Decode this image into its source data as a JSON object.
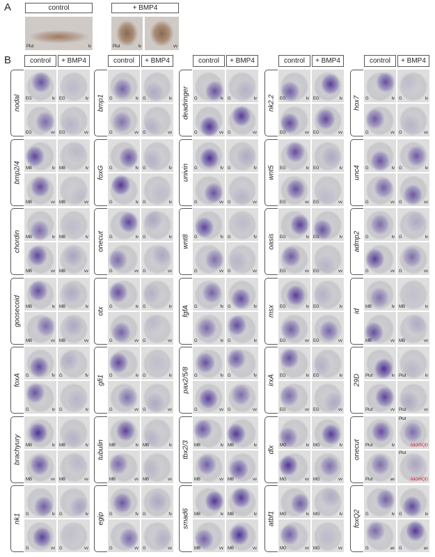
{
  "panel_a": {
    "label": "A",
    "headers": [
      "control",
      "+ BMP4"
    ],
    "images": [
      {
        "s": "Plut",
        "v": "lv"
      },
      {
        "s": "Plut",
        "v": "lv"
      },
      {
        "v": "vv"
      }
    ]
  },
  "panel_b": {
    "label": "B",
    "columns": [
      {
        "headers": [
          "control",
          "+ BMP4"
        ],
        "genes": [
          {
            "name": "nodal",
            "images": [
              [
                {
                  "s": "EG",
                  "v": "lv"
                },
                {
                  "s": "EG",
                  "v": "lv"
                }
              ],
              [
                {
                  "s": "EG",
                  "v": "vv"
                },
                {
                  "s": "EG",
                  "v": "vv"
                }
              ]
            ]
          },
          {
            "name": "bmp2/4",
            "images": [
              [
                {
                  "s": "MB",
                  "v": "lv"
                },
                {
                  "s": "MB",
                  "v": "lv"
                }
              ],
              [
                {
                  "s": "MB",
                  "v": "vv"
                },
                {
                  "s": "MB",
                  "v": "vv"
                }
              ]
            ]
          },
          {
            "name": "chordin",
            "images": [
              [
                {
                  "s": "MB",
                  "v": "lv"
                },
                {
                  "s": "MB",
                  "v": "lv"
                }
              ],
              [
                {
                  "s": "MB",
                  "v": "vv"
                },
                {
                  "s": "MB",
                  "v": "vv"
                }
              ]
            ]
          },
          {
            "name": "goosecoid",
            "images": [
              [
                {
                  "s": "MB",
                  "v": "lv"
                },
                {
                  "s": "MB",
                  "v": "lv"
                }
              ],
              [
                {
                  "s": "MB",
                  "v": "vv"
                },
                {
                  "s": "MB",
                  "v": "vv"
                }
              ]
            ]
          },
          {
            "name": "foxA",
            "images": [
              [
                {
                  "s": "G",
                  "v": "fv"
                },
                {
                  "s": "G",
                  "v": "fv"
                }
              ],
              [
                {
                  "s": "G",
                  "v": "lv"
                },
                {
                  "s": "G",
                  "v": "lv"
                }
              ]
            ]
          },
          {
            "name": "brachyury",
            "images": [
              [
                {
                  "s": "MB",
                  "v": "lv"
                },
                {
                  "s": "MB",
                  "v": "lv"
                }
              ],
              [
                {
                  "s": "MB",
                  "v": "vv"
                },
                {
                  "s": "MB",
                  "v": "vv"
                }
              ]
            ]
          },
          {
            "name": "nk1",
            "images": [
              [
                {
                  "s": "G",
                  "v": "lv"
                },
                {
                  "s": "G",
                  "v": "lv"
                }
              ],
              [
                {
                  "s": "G",
                  "v": "vv"
                },
                {
                  "s": "G",
                  "v": "vv"
                }
              ]
            ]
          }
        ]
      },
      {
        "headers": [
          "control",
          "+ BMP4"
        ],
        "genes": [
          {
            "name": "bmp1",
            "images": [
              [
                {
                  "s": "G",
                  "v": "lv"
                },
                {
                  "s": "G",
                  "v": "lv"
                }
              ],
              [
                {
                  "s": "G",
                  "v": "vv"
                },
                {
                  "s": "G",
                  "v": "vv"
                }
              ]
            ]
          },
          {
            "name": "foxG",
            "images": [
              [
                {
                  "s": "G",
                  "v": "fv"
                },
                {
                  "s": "G",
                  "v": "fv"
                }
              ],
              [
                {
                  "s": "G",
                  "v": "lv"
                },
                {
                  "s": "G",
                  "v": "lv"
                }
              ]
            ]
          },
          {
            "name": "onecut",
            "images": [
              [
                {
                  "s": "G",
                  "v": "lv"
                },
                {
                  "s": "G",
                  "v": "lv"
                }
              ],
              [
                {
                  "s": "G",
                  "v": "vv"
                },
                {
                  "s": "G",
                  "v": "vv"
                }
              ]
            ]
          },
          {
            "name": "otx",
            "images": [
              [
                {
                  "s": "G",
                  "v": "lv"
                },
                {
                  "s": "G",
                  "v": "lv"
                }
              ],
              [
                {
                  "s": "G",
                  "v": "vv"
                },
                {
                  "s": "G",
                  "v": "vv"
                }
              ]
            ]
          },
          {
            "name": "gfi1",
            "images": [
              [
                {
                  "s": "G",
                  "v": "lv"
                },
                {
                  "s": "G",
                  "v": "lv"
                }
              ],
              [
                {
                  "s": "G",
                  "v": "vv"
                },
                {
                  "s": "G",
                  "v": "vv"
                }
              ]
            ]
          },
          {
            "name": "tubulin",
            "images": [
              [
                {
                  "s": "MB",
                  "v": "lv"
                },
                {
                  "s": "MB",
                  "v": "lv"
                }
              ],
              [
                {
                  "s": "MB",
                  "v": "vv"
                },
                {
                  "s": "MB",
                  "v": "vv"
                }
              ]
            ]
          },
          {
            "name": "egip",
            "images": [
              [
                {
                  "s": "G",
                  "v": "fv"
                },
                {
                  "s": "G",
                  "v": "fv"
                }
              ],
              [
                {
                  "s": "G",
                  "v": "vv"
                },
                {
                  "s": "G",
                  "v": "vv"
                }
              ]
            ]
          }
        ]
      },
      {
        "headers": [
          "control",
          "+ BMP4"
        ],
        "genes": [
          {
            "name": "deadringer",
            "images": [
              [
                {
                  "s": "G",
                  "v": "lv"
                },
                {
                  "s": "G",
                  "v": "lv"
                }
              ],
              [
                {
                  "s": "G",
                  "v": "vv"
                },
                {
                  "s": "G",
                  "v": "vv"
                }
              ]
            ]
          },
          {
            "name": "univin",
            "images": [
              [
                {
                  "s": "G",
                  "v": "fv"
                },
                {
                  "s": "G",
                  "v": "fv"
                }
              ],
              [
                {
                  "s": "G",
                  "v": "vv"
                },
                {
                  "s": "G",
                  "v": "vv"
                }
              ]
            ]
          },
          {
            "name": "wnt8",
            "images": [
              [
                {
                  "s": "G",
                  "v": "fv"
                },
                {
                  "s": "G",
                  "v": "fv"
                }
              ],
              [
                {
                  "s": "G",
                  "v": "vv"
                },
                {
                  "s": "G",
                  "v": "vv"
                }
              ]
            ]
          },
          {
            "name": "fgfA",
            "images": [
              [
                {
                  "s": "G",
                  "v": "fv"
                },
                {
                  "s": "G",
                  "v": "fv"
                }
              ],
              [
                {
                  "s": "G",
                  "v": "lv"
                },
                {
                  "s": "G",
                  "v": "lv"
                }
              ]
            ]
          },
          {
            "name": "pax2/5/8",
            "images": [
              [
                {
                  "s": "G",
                  "v": "fv"
                },
                {
                  "s": "G",
                  "v": "fv"
                }
              ],
              [
                {
                  "s": "G",
                  "v": "vv"
                },
                {
                  "s": "G",
                  "v": "vv"
                }
              ]
            ]
          },
          {
            "name": "tbx2/3",
            "images": [
              [
                {
                  "s": "MB",
                  "v": "lv"
                },
                {
                  "s": "MB",
                  "v": "lv"
                }
              ],
              [
                {
                  "s": "MB",
                  "v": "vv"
                },
                {
                  "s": "MB",
                  "v": "vv"
                }
              ]
            ]
          },
          {
            "name": "smad6",
            "images": [
              [
                {
                  "s": "MB",
                  "v": "lv"
                },
                {
                  "s": "MB",
                  "v": "lv"
                }
              ],
              [
                {
                  "s": "MB",
                  "v": "vv"
                },
                {
                  "s": "MB",
                  "v": "vv"
                }
              ]
            ]
          }
        ]
      },
      {
        "headers": [
          "control",
          "+ BMP4"
        ],
        "genes": [
          {
            "name": "nk2.2",
            "images": [
              [
                {
                  "s": "EG",
                  "v": "lv"
                },
                {
                  "s": "EG",
                  "v": "lv"
                }
              ],
              [
                {
                  "s": "EG",
                  "v": "vv"
                },
                {
                  "s": "EG",
                  "v": "vv"
                }
              ]
            ]
          },
          {
            "name": "wnt5",
            "images": [
              [
                {
                  "s": "EG",
                  "v": "lv"
                },
                {
                  "s": "EG",
                  "v": "lv"
                }
              ],
              [
                {
                  "s": "EG",
                  "v": "vv"
                },
                {
                  "s": "EG",
                  "v": "vv"
                }
              ]
            ]
          },
          {
            "name": "oasis",
            "images": [
              [
                {
                  "s": "EG",
                  "v": "lv"
                },
                {
                  "s": "EG",
                  "v": "lv"
                }
              ],
              [
                {
                  "s": "EG",
                  "v": "vv"
                },
                {
                  "s": "EG",
                  "v": "vv"
                }
              ]
            ]
          },
          {
            "name": "msx",
            "images": [
              [
                {
                  "s": "EG",
                  "v": "lv"
                },
                {
                  "s": "EG",
                  "v": "lv"
                }
              ],
              [
                {
                  "s": "EG",
                  "v": "vv"
                },
                {
                  "s": "EG",
                  "v": "vv"
                }
              ]
            ]
          },
          {
            "name": "irxA",
            "images": [
              [
                {
                  "s": "EG",
                  "v": "lv"
                },
                {
                  "s": "EG",
                  "v": "lv"
                }
              ],
              [
                {
                  "s": "EG",
                  "v": "vv"
                },
                {
                  "s": "EG",
                  "v": "vv"
                }
              ]
            ]
          },
          {
            "name": "dlx",
            "images": [
              [
                {
                  "s": "MG",
                  "v": "lv"
                },
                {
                  "s": "MG",
                  "v": "lv"
                }
              ],
              [
                {
                  "s": "MG",
                  "v": "vv"
                },
                {
                  "s": "MG",
                  "v": "vv"
                }
              ]
            ]
          },
          {
            "name": "atbf1",
            "images": [
              [
                {
                  "s": "MG",
                  "v": "lv"
                },
                {
                  "s": "MG",
                  "v": "lv"
                }
              ],
              [
                {
                  "s": "MG",
                  "v": "vv"
                },
                {
                  "s": "MG",
                  "v": "vv"
                }
              ]
            ]
          }
        ]
      },
      {
        "headers": [
          "control",
          "+ BMP4"
        ],
        "genes": [
          {
            "name": "hox7",
            "images": [
              [
                {
                  "s": "G",
                  "v": "lv"
                },
                {
                  "s": "G",
                  "v": "lv"
                }
              ],
              [
                {
                  "s": "G",
                  "v": "vv"
                },
                {
                  "s": "G",
                  "v": "vv"
                }
              ]
            ]
          },
          {
            "name": "unc4",
            "images": [
              [
                {
                  "s": "G",
                  "v": "lv"
                },
                {
                  "s": "G",
                  "v": "lv"
                }
              ],
              [
                {
                  "s": "G",
                  "v": "vv"
                },
                {
                  "s": "G",
                  "v": "vv"
                }
              ]
            ]
          },
          {
            "name": "admp2",
            "images": [
              [
                {
                  "s": "G",
                  "v": "lv"
                },
                {
                  "s": "G",
                  "v": "lv"
                }
              ],
              [
                {
                  "s": "G",
                  "v": "vv"
                },
                {
                  "s": "G",
                  "v": "vv"
                }
              ]
            ]
          },
          {
            "name": "id",
            "images": [
              [
                {
                  "s": "MB",
                  "v": "lv"
                },
                {
                  "s": "MB",
                  "v": "lv"
                }
              ],
              [
                {
                  "s": "MB",
                  "v": "vv"
                },
                {
                  "s": "MB",
                  "v": "vv"
                }
              ]
            ]
          },
          {
            "name": "29D",
            "images": [
              [
                {
                  "s": "Plut",
                  "v": "lv"
                },
                {
                  "s": "Plut",
                  "v": "lv"
                }
              ],
              [
                {
                  "s": "Plut",
                  "v": "vv"
                },
                {
                  "s": "Plut",
                  "v": "vv"
                }
              ]
            ]
          },
          {
            "name": "onecut",
            "images": [
              [
                {
                  "s": "Plut",
                  "v": "lv"
                },
                {
                  "top": "Plut",
                  "note": "Alk3/6QD"
                }
              ],
              [
                {
                  "s": "Plut",
                  "v": "av"
                },
                {
                  "top": "Plut",
                  "note": "Alk3/6QD"
                }
              ]
            ]
          },
          {
            "name": "foxQ2",
            "images": [
              [
                {
                  "s": "G",
                  "v": "lv"
                },
                {
                  "s": "G",
                  "v": "lv"
                }
              ],
              [
                {
                  "s": "G",
                  "v": "av"
                },
                {
                  "s": "G",
                  "v": "av"
                }
              ]
            ]
          }
        ]
      }
    ]
  }
}
